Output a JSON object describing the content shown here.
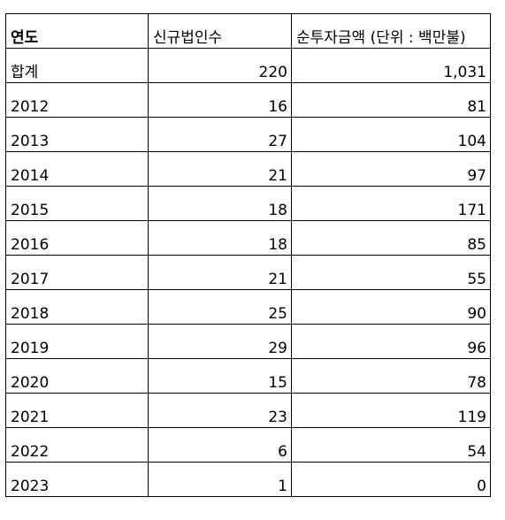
{
  "table": {
    "header": [
      "연도",
      "신규법인수",
      "순투자금액 (단위 : 백만불)"
    ],
    "rows": [
      [
        "합계",
        "220",
        "1,031"
      ],
      [
        "2012",
        "16",
        "81"
      ],
      [
        "2013",
        "27",
        "104"
      ],
      [
        "2014",
        "21",
        "97"
      ],
      [
        "2015",
        "18",
        "171"
      ],
      [
        "2016",
        "18",
        "85"
      ],
      [
        "2017",
        "21",
        "55"
      ],
      [
        "2018",
        "25",
        "90"
      ],
      [
        "2019",
        "29",
        "96"
      ],
      [
        "2020",
        "15",
        "78"
      ],
      [
        "2021",
        "23",
        "119"
      ],
      [
        "2022",
        "6",
        "54"
      ],
      [
        "2023",
        "1",
        "0"
      ]
    ]
  }
}
